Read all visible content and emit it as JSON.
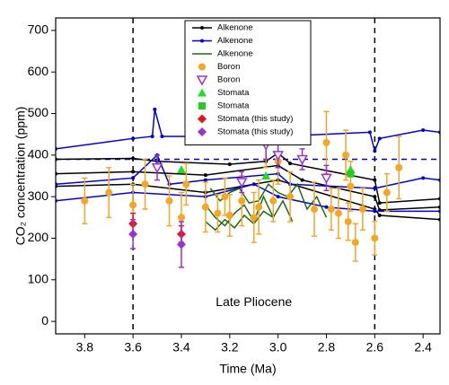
{
  "chart_data": {
    "type": "line",
    "xlabel": "Time (Ma)",
    "ylabel": "CO₂ concentration (ppm)",
    "annotation": {
      "text": "Late Pliocene",
      "x": 3.1,
      "y": 45
    },
    "xlim": [
      3.92,
      2.33
    ],
    "ylim": [
      -30,
      730
    ],
    "xticks": [
      3.8,
      3.6,
      3.4,
      3.2,
      {
        "value": 3,
        "label": "3.0"
      },
      2.8,
      2.6,
      2.4
    ],
    "yticks": [
      0,
      100,
      200,
      300,
      400,
      500,
      600,
      700
    ],
    "vlines": [
      3.6,
      2.6
    ],
    "hline": 390,
    "legend": "upper center",
    "series": [
      {
        "name": "Alkenone",
        "color": "#000000",
        "marker": "dot",
        "lines": [
          {
            "x": [
              3.92,
              3.6,
              3.5,
              3.2,
              3.05,
              3.0,
              2.95,
              2.6,
              2.58,
              2.33
            ],
            "values": [
              390,
              392,
              385,
              378,
              385,
              405,
              380,
              340,
              285,
              295
            ]
          },
          {
            "x": [
              3.92,
              3.6,
              3.3,
              3.0,
              2.9,
              2.6,
              2.58,
              2.33
            ],
            "values": [
              355,
              360,
              352,
              375,
              340,
              300,
              268,
              275
            ]
          },
          {
            "x": [
              3.92,
              3.6,
              3.3,
              3.0,
              2.6,
              2.58,
              2.33
            ],
            "values": [
              325,
              330,
              310,
              340,
              270,
              255,
              245
            ]
          }
        ]
      },
      {
        "name": "Alkenone",
        "color": "#0000dd",
        "marker": "dot",
        "lines": [
          {
            "x": [
              3.92,
              3.6,
              3.52,
              3.51,
              3.48,
              3.0,
              2.62,
              2.6,
              2.58,
              2.4,
              2.33
            ],
            "values": [
              415,
              440,
              445,
              510,
              445,
              445,
              455,
              410,
              440,
              460,
              455
            ]
          },
          {
            "x": [
              3.92,
              3.6,
              3.5,
              3.45,
              3.3,
              3.0,
              2.95,
              2.6,
              2.4,
              2.33
            ],
            "values": [
              330,
              345,
              400,
              330,
              340,
              355,
              330,
              320,
              345,
              340
            ]
          },
          {
            "x": [
              3.92,
              3.6,
              3.3,
              3.1,
              3.0,
              2.8,
              2.6,
              2.33
            ],
            "values": [
              290,
              310,
              300,
              330,
              300,
              275,
              265,
              265
            ]
          }
        ]
      },
      {
        "name": "Alkenone",
        "color": "#1a6b1a",
        "marker": "none",
        "lines": [
          {
            "x": [
              3.28,
              3.24,
              3.2,
              3.16,
              3.12,
              3.08,
              3.04,
              3.0,
              2.96,
              2.92,
              2.88,
              2.84,
              2.8
            ],
            "values": [
              320,
              290,
              310,
              320,
              285,
              290,
              330,
              310,
              300,
              330,
              270,
              300,
              250
            ]
          },
          {
            "x": [
              3.3,
              3.26,
              3.22,
              3.18,
              3.14,
              3.1,
              3.06,
              3.02,
              2.98,
              2.94
            ],
            "values": [
              280,
              250,
              230,
              260,
              280,
              240,
              300,
              250,
              290,
              240
            ]
          },
          {
            "x": [
              3.3,
              3.26,
              3.22,
              3.18,
              3.14,
              3.1,
              3.06,
              3.02
            ],
            "values": [
              240,
              220,
              245,
              225,
              255,
              235,
              265,
              250
            ]
          }
        ]
      },
      {
        "name": "Boron",
        "color": "#f5a623",
        "marker": "circle",
        "x": [
          3.8,
          3.7,
          3.6,
          3.55,
          3.45,
          3.4,
          3.38,
          3.3,
          3.25,
          3.22,
          3.2,
          3.15,
          3.1,
          3.08,
          3.05,
          3.02,
          3.0,
          2.95,
          2.85,
          2.8,
          2.78,
          2.75,
          2.72,
          2.71,
          2.7,
          2.68,
          2.65,
          2.6,
          2.55,
          2.5
        ],
        "values": [
          290,
          310,
          280,
          330,
          290,
          250,
          330,
          275,
          260,
          300,
          255,
          290,
          250,
          275,
          435,
          290,
          385,
          300,
          270,
          430,
          270,
          260,
          400,
          240,
          325,
          190,
          270,
          200,
          310,
          370
        ],
        "errors": [
          55,
          60,
          50,
          60,
          60,
          60,
          50,
          60,
          45,
          45,
          50,
          60,
          60,
          65,
          65,
          50,
          55,
          60,
          65,
          75,
          50,
          60,
          60,
          45,
          60,
          45,
          50,
          40,
          45,
          75
        ]
      },
      {
        "name": "Boron",
        "color": "#9b30d9",
        "marker": "triangle-down",
        "x": [
          3.5,
          3.15,
          3.05,
          3.0,
          2.9,
          2.8
        ],
        "values": [
          370,
          335,
          425,
          400,
          390,
          345
        ],
        "errors": [
          30,
          25,
          35,
          30,
          25,
          30
        ]
      },
      {
        "name": "Stomata",
        "color": "#22dd22",
        "marker": "triangle-up",
        "x": [
          3.4,
          3.05,
          2.7
        ],
        "values": [
          365,
          350,
          365
        ]
      },
      {
        "name": "Stomata",
        "color": "#22cc22",
        "marker": "square",
        "x": [
          2.7
        ],
        "values": [
          355
        ]
      },
      {
        "name": "Stomata (this study)",
        "color": "#ee1111",
        "marker": "diamond",
        "x": [
          3.6,
          3.4
        ],
        "values": [
          235,
          210
        ],
        "errors": [
          25,
          20
        ]
      },
      {
        "name": "Stomata (this study)",
        "color": "#9b30d9",
        "marker": "diamond",
        "x": [
          3.6,
          3.4
        ],
        "values": [
          210,
          185
        ],
        "errors": [
          35,
          55
        ]
      }
    ]
  }
}
